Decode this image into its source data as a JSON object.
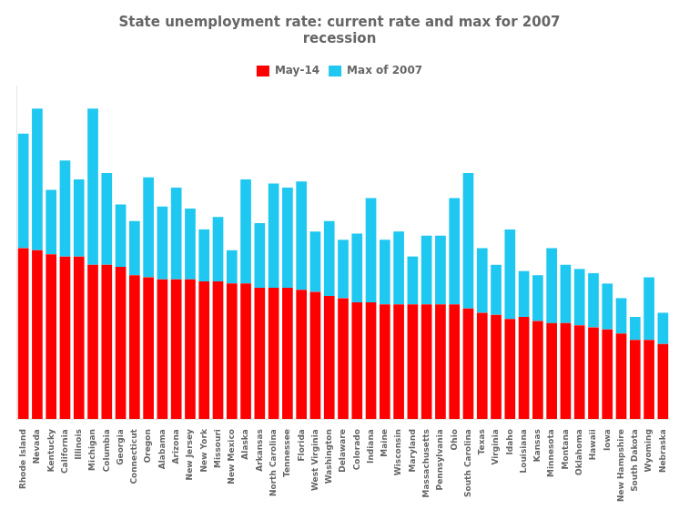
{
  "chart_data": {
    "type": "bar",
    "title": "State unemployment rate: current rate and max for 2007\nrecession",
    "categories": [
      "Rhode Island",
      "Nevada",
      "Kentucky",
      "California",
      "Illinois",
      "Michigan",
      "Columbia",
      "Georgia",
      "Connecticut",
      "Oregon",
      "Alabama",
      "Arizona",
      "New Jersey",
      "New York",
      "Missouri",
      "New Mexico",
      "Alaska",
      "Arkansas",
      "North Carolina",
      "Tennessee",
      "Florida",
      "West Virginia",
      "Washington",
      "Delaware",
      "Colorado",
      "Indiana",
      "Maine",
      "Wisconsin",
      "Maryland",
      "Massachusetts",
      "Pennsylvania",
      "Ohio",
      "South Carolina",
      "Texas",
      "Virginia",
      "Idaho",
      "Louisiana",
      "Kansas",
      "Minnesota",
      "Montana",
      "Oklahoma",
      "Hawaii",
      "Iowa",
      "New Hampshire",
      "South Dakota",
      "Wyoming",
      "Nebraska"
    ],
    "series": [
      {
        "name": "May-14",
        "color": "#FF0000",
        "values": [
          8.2,
          8.1,
          7.9,
          7.8,
          7.8,
          7.4,
          7.4,
          7.3,
          6.9,
          6.8,
          6.7,
          6.7,
          6.7,
          6.6,
          6.6,
          6.5,
          6.5,
          6.3,
          6.3,
          6.3,
          6.2,
          6.1,
          5.9,
          5.8,
          5.6,
          5.6,
          5.5,
          5.5,
          5.5,
          5.5,
          5.5,
          5.5,
          5.3,
          5.1,
          5.0,
          4.8,
          4.9,
          4.7,
          4.6,
          4.6,
          4.5,
          4.4,
          4.3,
          4.1,
          3.8,
          3.8,
          3.6
        ]
      },
      {
        "name": "Max of 2007",
        "color": "#1EC8F0",
        "values": [
          5.5,
          6.8,
          3.1,
          4.6,
          3.7,
          7.5,
          4.4,
          3.0,
          2.6,
          4.8,
          3.5,
          4.4,
          3.4,
          2.5,
          3.1,
          1.6,
          5.0,
          3.1,
          5.0,
          4.8,
          5.2,
          2.9,
          3.6,
          2.8,
          3.3,
          5.0,
          3.1,
          3.5,
          2.3,
          3.3,
          3.3,
          5.1,
          6.5,
          3.1,
          2.4,
          4.3,
          2.2,
          2.2,
          3.6,
          2.8,
          2.7,
          2.6,
          2.2,
          1.7,
          1.1,
          3.0,
          1.5
        ]
      }
    ],
    "stacked": true,
    "ylim": [
      0,
      16
    ],
    "grid": false,
    "legend": "top",
    "tick_labels": "x"
  }
}
